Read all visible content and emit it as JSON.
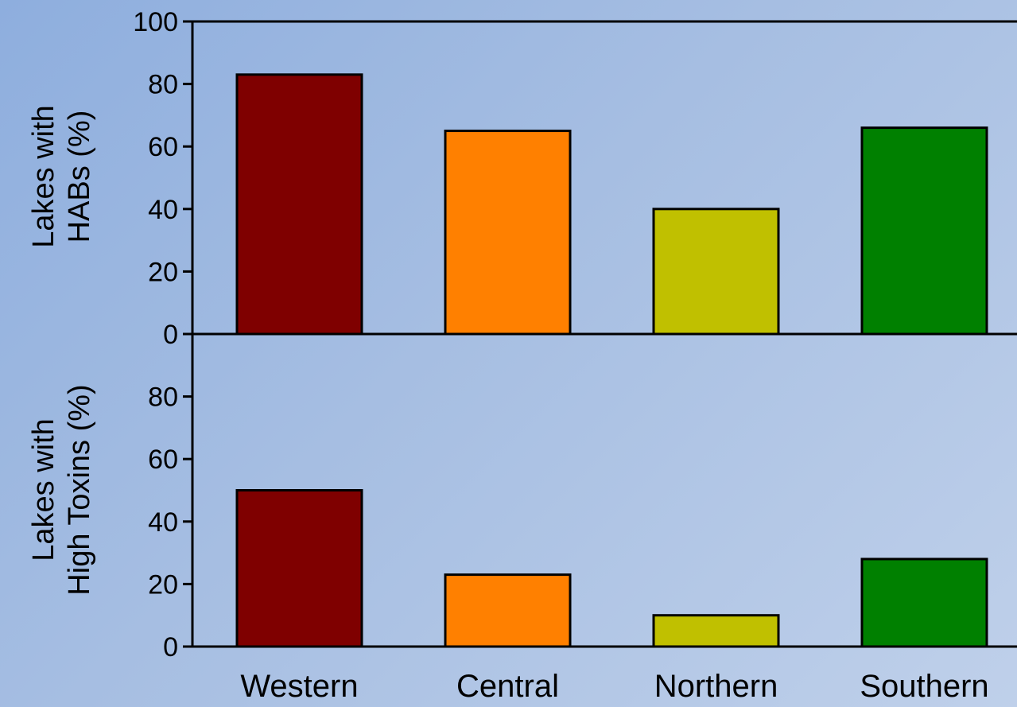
{
  "chart_data": [
    {
      "type": "bar",
      "categories": [
        "Western",
        "Central",
        "Northern",
        "Southern"
      ],
      "values": [
        83,
        65,
        40,
        66
      ],
      "colors": [
        "#7f0000",
        "#ff8000",
        "#c0c000",
        "#008000"
      ],
      "ylabel_lines": [
        "Lakes with",
        "HABs (%)"
      ],
      "ylim": [
        0,
        100
      ],
      "yticks": [
        0,
        20,
        40,
        60,
        80,
        100
      ],
      "legend": "none",
      "grid": false
    },
    {
      "type": "bar",
      "categories": [
        "Western",
        "Central",
        "Northern",
        "Southern"
      ],
      "values": [
        50,
        23,
        10,
        28
      ],
      "colors": [
        "#7f0000",
        "#ff8000",
        "#c0c000",
        "#008000"
      ],
      "ylabel_lines": [
        "Lakes with",
        "High Toxins (%)"
      ],
      "ylim": [
        0,
        100
      ],
      "yticks": [
        0,
        20,
        40,
        60,
        80
      ],
      "legend": "none",
      "grid": false
    }
  ]
}
